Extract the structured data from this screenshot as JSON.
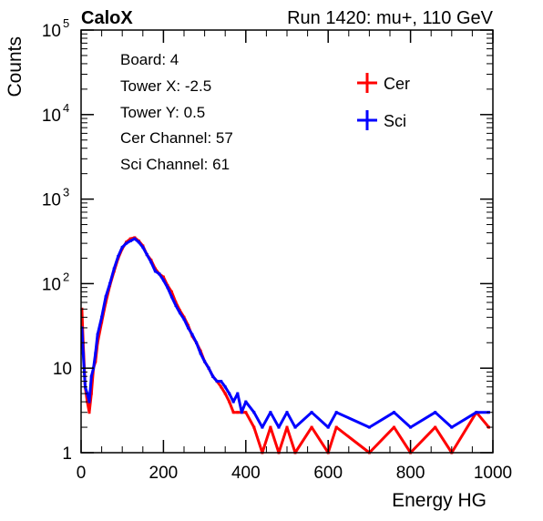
{
  "header": {
    "left_label": "CaloX",
    "right_label": "Run 1420: mu+, 110 GeV"
  },
  "info_box": {
    "lines": [
      "Board: 4",
      "Tower X: -2.5",
      "Tower Y: 0.5",
      "Cer Channel: 57",
      "Sci Channel: 61"
    ]
  },
  "chart_data": {
    "type": "line",
    "xlabel": "Energy HG",
    "ylabel": "Counts",
    "xlim": [
      0,
      1000
    ],
    "ylim": [
      1,
      100000
    ],
    "yscale": "log",
    "grid": false,
    "legend_position": "top-right",
    "x_ticks": [
      {
        "value": 0,
        "label": "0"
      },
      {
        "value": 200,
        "label": "200"
      },
      {
        "value": 400,
        "label": "400"
      },
      {
        "value": 600,
        "label": "600"
      },
      {
        "value": 800,
        "label": "800"
      },
      {
        "value": 1000,
        "label": "1000"
      }
    ],
    "y_ticks": [
      {
        "value": 1,
        "base": "1",
        "exp": ""
      },
      {
        "value": 10,
        "base": "10",
        "exp": ""
      },
      {
        "value": 100,
        "base": "10",
        "exp": "2"
      },
      {
        "value": 1000,
        "base": "10",
        "exp": "3"
      },
      {
        "value": 10000,
        "base": "10",
        "exp": "4"
      },
      {
        "value": 100000,
        "base": "10",
        "exp": "5"
      }
    ],
    "series": [
      {
        "name": "Cer",
        "color": "#ff0000",
        "x": [
          2,
          5,
          10,
          15,
          20,
          25,
          30,
          35,
          40,
          50,
          60,
          70,
          80,
          90,
          100,
          110,
          120,
          130,
          140,
          150,
          160,
          170,
          180,
          190,
          200,
          210,
          220,
          230,
          240,
          250,
          260,
          270,
          280,
          290,
          300,
          310,
          320,
          330,
          340,
          350,
          360,
          370,
          380,
          390,
          400,
          420,
          440,
          460,
          480,
          500,
          520,
          560,
          600,
          620,
          700,
          760,
          800,
          860,
          900,
          960,
          990
        ],
        "y": [
          50,
          20,
          6,
          4,
          3,
          5,
          10,
          12,
          20,
          35,
          60,
          95,
          140,
          200,
          260,
          310,
          340,
          350,
          320,
          280,
          220,
          190,
          150,
          130,
          120,
          95,
          80,
          60,
          48,
          40,
          32,
          24,
          20,
          16,
          12,
          10,
          8,
          7,
          6,
          5,
          4,
          3,
          3,
          3,
          3,
          2,
          1,
          2,
          1,
          2,
          1,
          2,
          1,
          2,
          1,
          2,
          1,
          2,
          1,
          3,
          2
        ]
      },
      {
        "name": "Sci",
        "color": "#0000ff",
        "x": [
          2,
          5,
          10,
          15,
          20,
          25,
          30,
          35,
          40,
          50,
          60,
          70,
          80,
          90,
          100,
          110,
          120,
          130,
          140,
          150,
          160,
          170,
          180,
          190,
          200,
          210,
          220,
          230,
          240,
          250,
          260,
          270,
          280,
          290,
          300,
          310,
          320,
          330,
          340,
          350,
          360,
          370,
          380,
          390,
          400,
          420,
          440,
          460,
          480,
          500,
          520,
          560,
          600,
          620,
          700,
          760,
          800,
          860,
          900,
          960,
          990
        ],
        "y": [
          30,
          15,
          6,
          5,
          4,
          8,
          10,
          15,
          25,
          40,
          70,
          100,
          150,
          210,
          270,
          300,
          320,
          340,
          310,
          270,
          220,
          180,
          140,
          130,
          110,
          90,
          70,
          55,
          45,
          38,
          30,
          25,
          20,
          15,
          12,
          10,
          8,
          7,
          7,
          6,
          5,
          4,
          5,
          3,
          4,
          3,
          2,
          3,
          2,
          3,
          2,
          3,
          2,
          3,
          2,
          3,
          2,
          3,
          2,
          3,
          3
        ]
      }
    ]
  }
}
